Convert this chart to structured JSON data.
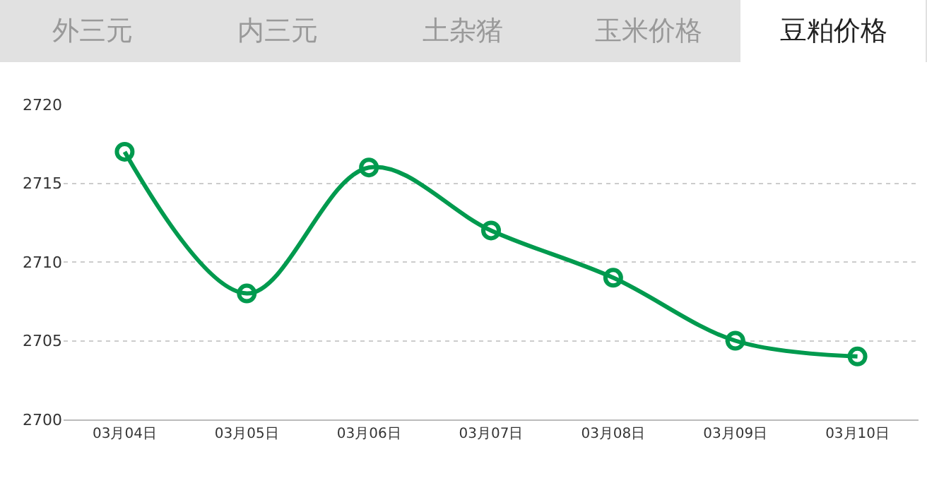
{
  "chart_data": {
    "type": "line",
    "categories": [
      "03月04日",
      "03月05日",
      "03月06日",
      "03月07日",
      "03月08日",
      "03月09日",
      "03月10日"
    ],
    "series": [
      {
        "color": "#009a4e",
        "values": [
          2717,
          2708,
          2716,
          2712,
          2709,
          2705,
          2704
        ]
      }
    ],
    "ylim": [
      2700,
      2720
    ],
    "yticks": [
      2700,
      2705,
      2710,
      2715,
      2720
    ],
    "grid": "y",
    "legend": false,
    "marker": "circle",
    "line_style": "solid",
    "annotations": [
      "外三元",
      "内三元",
      "土杂猪",
      "玉米价格",
      "豆粕价格"
    ]
  }
}
